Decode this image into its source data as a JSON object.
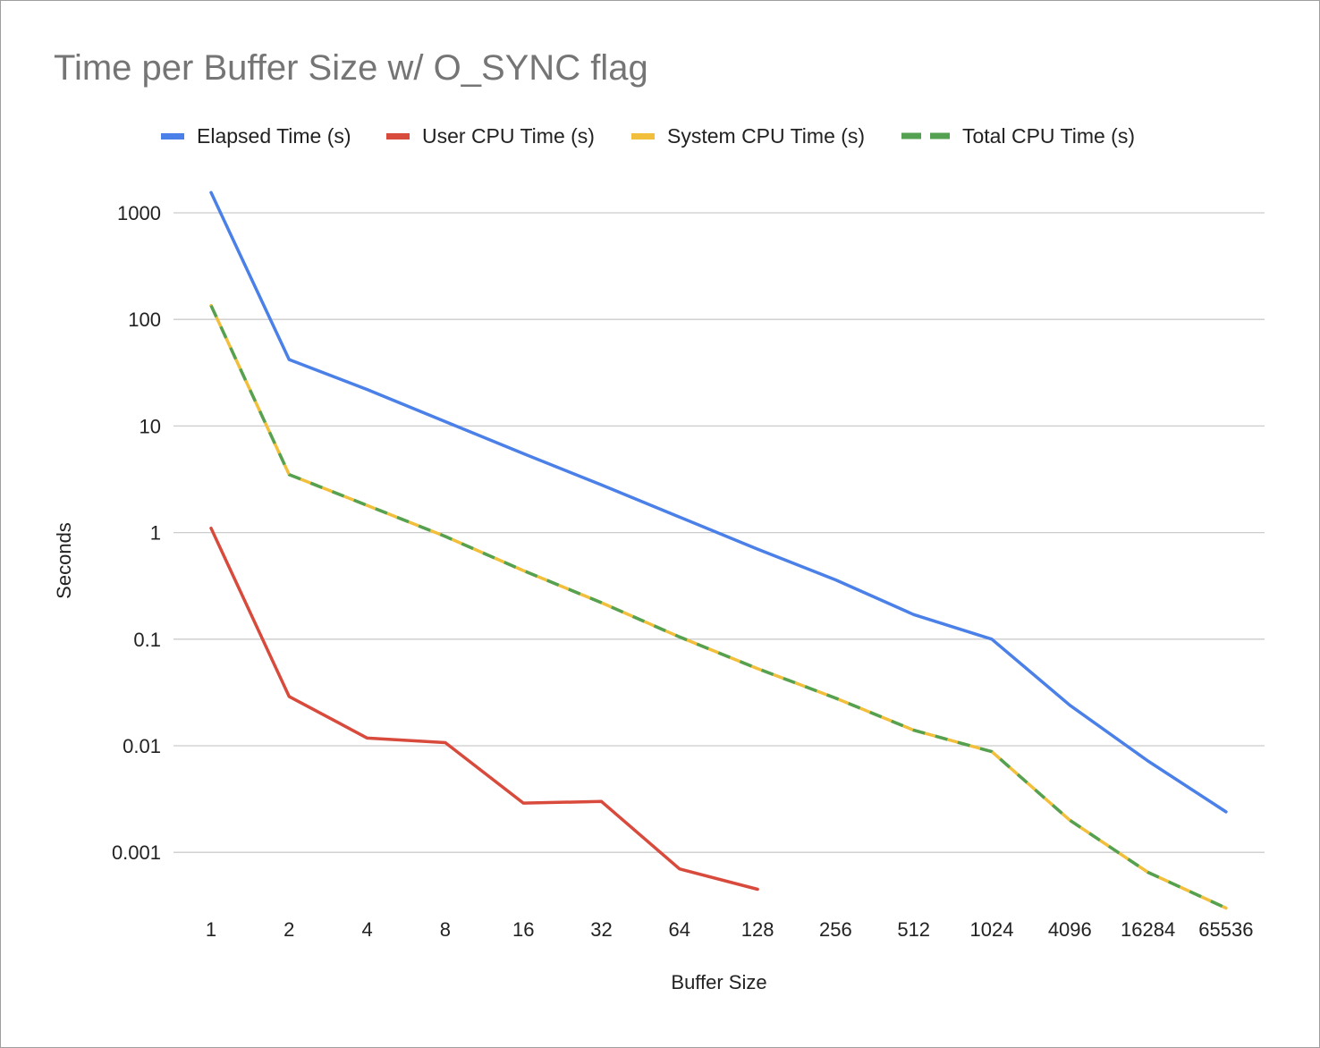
{
  "chart_data": {
    "type": "line",
    "title": "Time per Buffer Size w/ O_SYNC flag",
    "xlabel": "Buffer Size",
    "ylabel": "Seconds",
    "yscale": "log",
    "ylim": [
      0.0003,
      2000
    ],
    "y_ticks": [
      "1000",
      "100",
      "10",
      "1",
      "0.1",
      "0.01",
      "0.001"
    ],
    "grid": true,
    "legend_position": "top",
    "categories": [
      "1",
      "2",
      "4",
      "8",
      "16",
      "32",
      "64",
      "128",
      "256",
      "512",
      "1024",
      "4096",
      "16284",
      "65536"
    ],
    "series": [
      {
        "name": "Elapsed Time (s)",
        "color": "#4a80e8",
        "dash": "solid",
        "values": [
          1550,
          42,
          22,
          11,
          5.5,
          2.8,
          1.4,
          0.7,
          0.36,
          0.17,
          0.1,
          0.024,
          0.0072,
          0.0024
        ]
      },
      {
        "name": "User CPU Time (s)",
        "color": "#d84a3c",
        "dash": "solid",
        "values": [
          1.1,
          0.029,
          0.0118,
          0.0107,
          0.0029,
          0.003,
          0.0007,
          0.00045,
          null,
          null,
          null,
          null,
          null,
          null
        ]
      },
      {
        "name": "System CPU Time (s)",
        "color": "#f2bf3c",
        "dash": "solid",
        "values": [
          135,
          3.5,
          1.8,
          0.92,
          0.44,
          0.22,
          0.105,
          0.053,
          0.028,
          0.014,
          0.0088,
          0.002,
          0.00065,
          0.0003
        ]
      },
      {
        "name": "Total CPU Time (s)",
        "color": "#55a152",
        "dash": "dashed",
        "values": [
          135,
          3.5,
          1.8,
          0.92,
          0.44,
          0.22,
          0.105,
          0.053,
          0.028,
          0.014,
          0.0088,
          0.002,
          0.00065,
          0.0003
        ]
      }
    ]
  }
}
